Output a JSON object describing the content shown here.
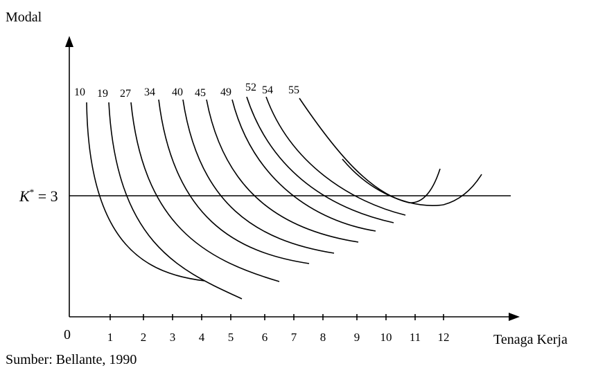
{
  "axes": {
    "y_label": "Modal",
    "x_label": "Tenaga Kerja",
    "origin_label": "0",
    "x_ticks": [
      "1",
      "2",
      "3",
      "4",
      "5",
      "6",
      "7",
      "8",
      "9",
      "10",
      "11",
      "12"
    ]
  },
  "capital_line": {
    "symbol": "K",
    "superscript": "*",
    "value_text": " = 3"
  },
  "curves": {
    "labels": [
      "10",
      "19",
      "27",
      "34",
      "40",
      "45",
      "49",
      "52",
      "54",
      "55"
    ]
  },
  "source": "Sumber: Bellante, 1990"
}
